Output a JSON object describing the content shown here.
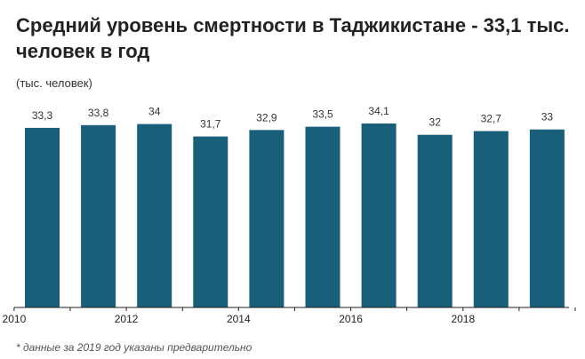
{
  "chart_data": {
    "type": "bar",
    "title": "Средний уровень смертности в Таджикистане - 33,1 тыс. человек в год",
    "unit_label": "(тыс. человек)",
    "footnote": "* данные за 2019 год указаны предварительно",
    "categories": [
      "2010",
      "2011",
      "2012",
      "2013",
      "2014",
      "2015",
      "2016",
      "2017",
      "2018",
      "2019"
    ],
    "x_tick_labels": [
      "2010",
      "",
      "2012",
      "",
      "2014",
      "",
      "2016",
      "",
      "2018",
      ""
    ],
    "values": [
      33.3,
      33.8,
      34,
      31.7,
      32.9,
      33.5,
      34.1,
      32,
      32.7,
      33
    ],
    "value_labels": [
      "33,3",
      "33,8",
      "34",
      "31,7",
      "32,9",
      "33,5",
      "34,1",
      "32",
      "32,7",
      "33"
    ],
    "ylim": [
      0,
      34.1
    ],
    "grid": false,
    "colors": {
      "bar": "#1a5f7a",
      "axis": "#222222",
      "label": "#333333"
    }
  }
}
